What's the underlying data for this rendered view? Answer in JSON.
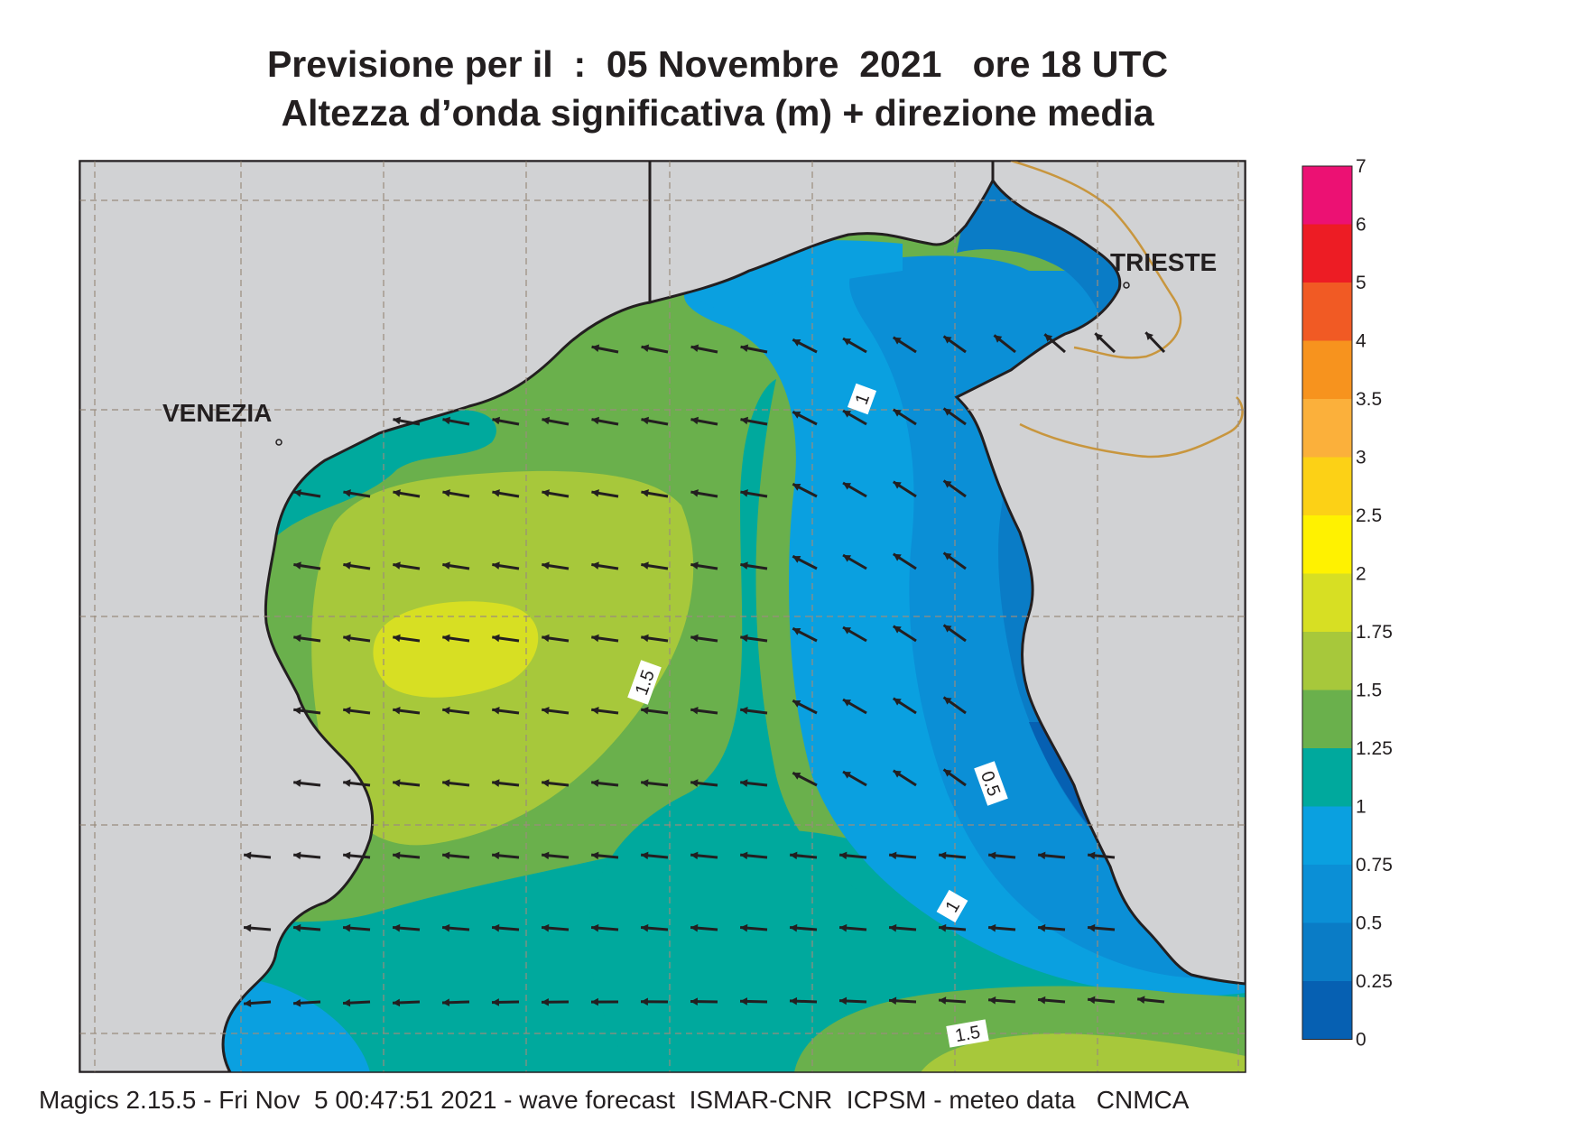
{
  "title_line1": "Previsione per il  :  05 Novembre  2021   ore 18 UTC",
  "title_line2": "Altezza d’onda significativa (m) + direzione media",
  "footer": "Magics 2.15.5 - Fri Nov  5 00:47:51 2021 - wave forecast  ISMAR-CNR  ICPSM - meteo data   CNMCA",
  "cities": [
    "VENEZIA",
    "TRIESTE"
  ],
  "legend": {
    "labels": [
      "7",
      "6",
      "5",
      "4",
      "3.5",
      "3",
      "2.5",
      "2",
      "1.75",
      "1.5",
      "1.25",
      "1",
      "0.75",
      "0.5",
      "0.25",
      "0"
    ],
    "colors": [
      "#ec1173",
      "#ed1c24",
      "#f15a24",
      "#f7931e",
      "#fbb03b",
      "#fcd116",
      "#fff200",
      "#d7df23",
      "#a7c83b",
      "#6ab04c",
      "#00a99d",
      "#0aa0e0",
      "#0b8fd6",
      "#0a7cc6",
      "#0660b2"
    ]
  },
  "contour_labels": [
    "1",
    "1.5",
    "0.5",
    "1",
    "1.5"
  ],
  "colors": {
    "land": "#d1d2d4",
    "coast": "#231f20",
    "border": "#c8963e",
    "arrow": "#231f20"
  }
}
